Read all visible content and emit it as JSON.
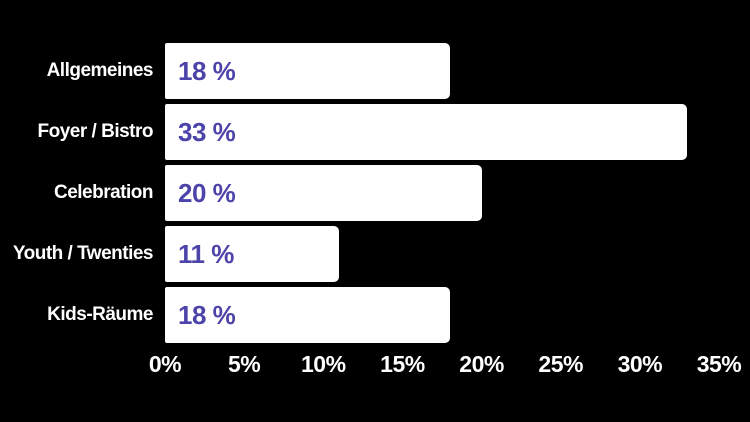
{
  "colors": {
    "background": "#000000",
    "bar": "#ffffff",
    "category_label": "#ffffff",
    "value_label": "#4d44aa",
    "axis_label": "#ffffff"
  },
  "chart_data": {
    "type": "bar",
    "orientation": "horizontal",
    "title": "",
    "xlabel": "",
    "ylabel": "",
    "categories": [
      "Allgemeines",
      "Foyer / Bistro",
      "Celebration",
      "Youth / Twenties",
      "Kids-Räume"
    ],
    "values": [
      18,
      33,
      20,
      11,
      18
    ],
    "value_labels": [
      "18 %",
      "33 %",
      "20 %",
      "11 %",
      "18 %"
    ],
    "x_ticks": [
      "0%",
      "5%",
      "10%",
      "15%",
      "20%",
      "25%",
      "30%",
      "35%"
    ],
    "xlim": [
      0,
      35
    ],
    "grid": false,
    "legend": false
  }
}
